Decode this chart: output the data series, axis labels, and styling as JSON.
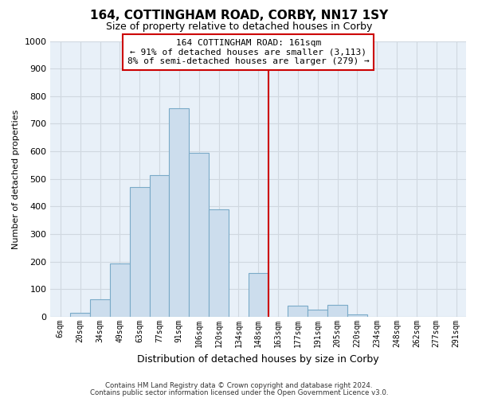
{
  "title": "164, COTTINGHAM ROAD, CORBY, NN17 1SY",
  "subtitle": "Size of property relative to detached houses in Corby",
  "xlabel": "Distribution of detached houses by size in Corby",
  "ylabel": "Number of detached properties",
  "footer_line1": "Contains HM Land Registry data © Crown copyright and database right 2024.",
  "footer_line2": "Contains public sector information licensed under the Open Government Licence v3.0.",
  "bar_labels": [
    "6sqm",
    "20sqm",
    "34sqm",
    "49sqm",
    "63sqm",
    "77sqm",
    "91sqm",
    "106sqm",
    "120sqm",
    "134sqm",
    "148sqm",
    "163sqm",
    "177sqm",
    "191sqm",
    "205sqm",
    "220sqm",
    "234sqm",
    "248sqm",
    "262sqm",
    "277sqm",
    "291sqm"
  ],
  "bar_values": [
    0,
    15,
    65,
    195,
    470,
    515,
    755,
    595,
    390,
    0,
    160,
    0,
    40,
    25,
    45,
    10,
    0,
    0,
    0,
    0,
    0
  ],
  "bar_color": "#ccdded",
  "bar_edge_color": "#7aaac8",
  "vline_index": 11,
  "vline_color": "#cc0000",
  "ylim": [
    0,
    1000
  ],
  "yticks": [
    0,
    100,
    200,
    300,
    400,
    500,
    600,
    700,
    800,
    900,
    1000
  ],
  "annotation_title": "164 COTTINGHAM ROAD: 161sqm",
  "annotation_line1": "← 91% of detached houses are smaller (3,113)",
  "annotation_line2": "8% of semi-detached houses are larger (279) →",
  "annotation_box_color": "#ffffff",
  "annotation_box_edge": "#cc0000",
  "grid_color": "#d0d8e0",
  "plot_bg_color": "#e8f0f8"
}
